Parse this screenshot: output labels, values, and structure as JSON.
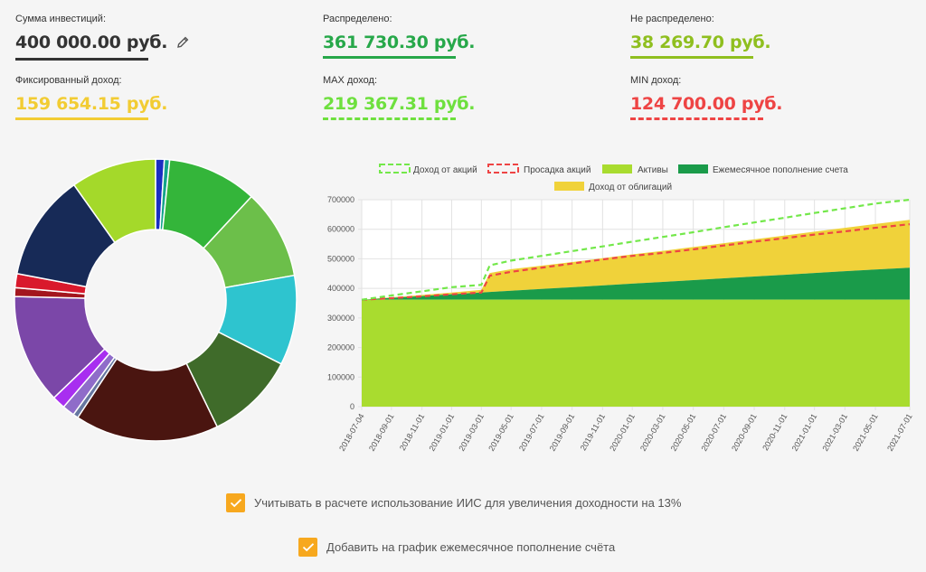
{
  "stats": {
    "invest": {
      "label": "Сумма инвестиций:",
      "value": "400 000.00 руб.",
      "color": "#333333",
      "icon": "pencil-icon"
    },
    "fixed": {
      "label": "Фиксированный доход:",
      "value": "159 654.15 руб.",
      "color": "#f2cc33"
    },
    "distributed": {
      "label": "Распределено:",
      "value": "361 730.30 руб.",
      "color": "#27a84a"
    },
    "max": {
      "label": "MAX доход:",
      "value": "219 367.31 руб.",
      "color": "#6ee03e"
    },
    "undistributed": {
      "label": "Не распределено:",
      "value": "38 269.70 руб.",
      "color": "#8fbf1f"
    },
    "min": {
      "label": "MIN доход:",
      "value": "124 700.00 руб.",
      "color": "#ee4444"
    }
  },
  "options": {
    "iis_label": "Учитывать в расчете использование ИИС для увеличения доходности на 13%",
    "monthly_label": "Добавить на график ежемесячное пополнение счёта",
    "check_color": "#f7a81e"
  },
  "chart_data": [
    {
      "type": "pie",
      "subtype": "donut",
      "title": "",
      "slices": [
        {
          "value": 1.0,
          "color": "#1a2ec2"
        },
        {
          "value": 0.6,
          "color": "#14a58a"
        },
        {
          "value": 10.3,
          "color": "#34b53a"
        },
        {
          "value": 10.3,
          "color": "#6cbf4a"
        },
        {
          "value": 10.3,
          "color": "#2ec4cf"
        },
        {
          "value": 10.3,
          "color": "#3f6b2a"
        },
        {
          "value": 16.5,
          "color": "#4a1510"
        },
        {
          "value": 0.6,
          "color": "#6677a0"
        },
        {
          "value": 1.4,
          "color": "#8f6cc9"
        },
        {
          "value": 1.5,
          "color": "#a82ef0"
        },
        {
          "value": 12.6,
          "color": "#7b47a8"
        },
        {
          "value": 1.0,
          "color": "#a3161e"
        },
        {
          "value": 1.6,
          "color": "#d9192c"
        },
        {
          "value": 12.2,
          "color": "#172a57"
        },
        {
          "value": 9.8,
          "color": "#a4d92a"
        }
      ]
    },
    {
      "type": "area",
      "legend": [
        {
          "name": "Доход от акций",
          "style": "dashed",
          "color": "#73e84a"
        },
        {
          "name": "Просадка акций",
          "style": "dashed",
          "color": "#ee4444"
        },
        {
          "name": "Активы",
          "style": "fill",
          "color": "#a9dc2f"
        },
        {
          "name": "Ежемесячное пополнение счета",
          "style": "fill",
          "color": "#1a9b4a"
        },
        {
          "name": "Доход от облигаций",
          "style": "fill",
          "color": "#f0d23a"
        }
      ],
      "ylim": [
        0,
        700000
      ],
      "yticks": [
        "0",
        "100000",
        "200000",
        "300000",
        "400000",
        "500000",
        "600000",
        "700000"
      ],
      "xticks": [
        "2018-07-04",
        "2018-09-01",
        "2018-11-01",
        "2019-01-01",
        "2019-03-01",
        "2019-05-01",
        "2019-07-01",
        "2019-09-01",
        "2019-11-01",
        "2020-01-01",
        "2020-03-01",
        "2020-05-01",
        "2020-07-01",
        "2020-09-01",
        "2020-11-01",
        "2021-01-01",
        "2021-03-01",
        "2021-05-01",
        "2021-07-01"
      ],
      "x": [
        0,
        1.95,
        3.95,
        5.9,
        7.85,
        8.4,
        9.8,
        11.8,
        13.8,
        15.8,
        17.75,
        19.75,
        21.75,
        23.75,
        25.75,
        27.75,
        29.7,
        31.7,
        33.7,
        35.95
      ],
      "series": [
        {
          "name": "Активы",
          "values": [
            361730,
            361730,
            361730,
            361730,
            361730,
            361730,
            361730,
            361730,
            361730,
            361730,
            361730,
            361730,
            361730,
            361730,
            361730,
            361730,
            361730,
            361730,
            361730,
            361730
          ]
        },
        {
          "name": "Ежемесячное пополнение счета",
          "values": [
            361730,
            368000,
            374000,
            380000,
            386000,
            388000,
            392000,
            398000,
            404000,
            410000,
            416000,
            422000,
            428000,
            434000,
            440000,
            446000,
            452000,
            458000,
            464000,
            470000
          ]
        },
        {
          "name": "Доход от облигаций",
          "values": [
            361730,
            370000,
            378000,
            386000,
            395000,
            452000,
            465000,
            477000,
            489000,
            502000,
            515000,
            527000,
            540000,
            553000,
            566000,
            579000,
            592000,
            605000,
            618000,
            632000
          ]
        },
        {
          "name": "Доход от акций",
          "values": [
            361730,
            376000,
            390000,
            404000,
            412000,
            478000,
            494000,
            510000,
            526000,
            542000,
            558000,
            574000,
            590000,
            607000,
            623000,
            639000,
            655000,
            671000,
            687000,
            700000
          ]
        },
        {
          "name": "Просадка акций",
          "values": [
            361730,
            367000,
            373000,
            380000,
            386000,
            443000,
            456000,
            470000,
            484000,
            498000,
            510000,
            520000,
            532000,
            545000,
            558000,
            570000,
            582000,
            593000,
            605000,
            617000
          ]
        }
      ]
    }
  ]
}
